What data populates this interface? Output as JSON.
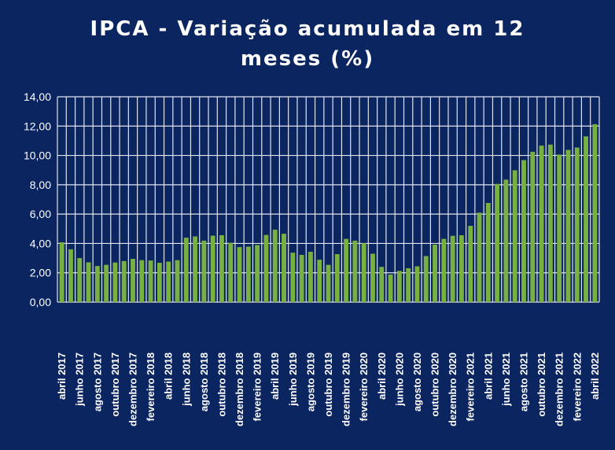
{
  "colors": {
    "background": "#0b2560",
    "bar": "#78b041",
    "grid": "#dfe4ee",
    "text": "#ffffff"
  },
  "chart_data": {
    "type": "bar",
    "title_line1": "IPCA - Variação acumulada em 12",
    "title_line2": "meses (%)",
    "ylim": [
      0,
      14
    ],
    "yticks": [
      "0,00",
      "2,00",
      "4,00",
      "6,00",
      "8,00",
      "10,00",
      "12,00",
      "14,00"
    ],
    "grid": true,
    "categories": [
      "abril 2017",
      "maio 2017",
      "junho 2017",
      "julho 2017",
      "agosto 2017",
      "setembro 2017",
      "outubro 2017",
      "novembro 2017",
      "dezembro 2017",
      "janeiro 2018",
      "fevereiro 2018",
      "março 2018",
      "abril 2018",
      "maio 2018",
      "junho 2018",
      "julho 2018",
      "agosto 2018",
      "setembro 2018",
      "outubro 2018",
      "novembro 2018",
      "dezembro 2018",
      "janeiro 2019",
      "fevereiro 2019",
      "março 2019",
      "abril 2019",
      "maio 2019",
      "junho 2019",
      "julho 2019",
      "agosto 2019",
      "setembro 2019",
      "outubro 2019",
      "novembro 2019",
      "dezembro 2019",
      "janeiro 2020",
      "fevereiro 2020",
      "março 2020",
      "abril 2020",
      "maio 2020",
      "junho 2020",
      "julho 2020",
      "agosto 2020",
      "setembro 2020",
      "outubro 2020",
      "novembro 2020",
      "dezembro 2020",
      "janeiro 2021",
      "fevereiro 2021",
      "março 2021",
      "abril 2021",
      "maio 2021",
      "junho 2021",
      "julho 2021",
      "agosto 2021",
      "setembro 2021",
      "outubro 2021",
      "novembro 2021",
      "dezembro 2021",
      "janeiro 2022",
      "fevereiro 2022",
      "março 2022",
      "abril 2022"
    ],
    "shown_labels": [
      "abril 2017",
      "junho 2017",
      "agosto 2017",
      "outubro 2017",
      "dezembro 2017",
      "fevereiro 2018",
      "abril 2018",
      "junho 2018",
      "agosto 2018",
      "outubro 2018",
      "dezembro 2018",
      "fevereiro 2019",
      "abril 2019",
      "junho 2019",
      "agosto 2019",
      "outubro 2019",
      "dezembro 2019",
      "fevereiro 2020",
      "abril 2020",
      "junho 2020",
      "agosto 2020",
      "outubro 2020",
      "dezembro 2020",
      "fevereiro 2021",
      "abril 2021",
      "junho 2021",
      "agosto 2021",
      "outubro 2021",
      "dezembro 2021",
      "fevereiro 2022",
      "abril 2022"
    ],
    "values": [
      4.08,
      3.6,
      3.0,
      2.71,
      2.46,
      2.54,
      2.7,
      2.8,
      2.95,
      2.86,
      2.84,
      2.68,
      2.76,
      2.86,
      4.39,
      4.48,
      4.19,
      4.53,
      4.56,
      4.05,
      3.75,
      3.78,
      3.89,
      4.58,
      4.94,
      4.66,
      3.37,
      3.22,
      3.43,
      2.89,
      2.54,
      3.27,
      4.31,
      4.19,
      4.01,
      3.3,
      2.4,
      1.88,
      2.13,
      2.31,
      2.44,
      3.14,
      3.92,
      4.31,
      4.52,
      4.56,
      5.2,
      6.1,
      6.76,
      8.06,
      8.35,
      8.99,
      9.68,
      10.25,
      10.67,
      10.74,
      10.06,
      10.38,
      10.54,
      11.3,
      12.13
    ]
  }
}
